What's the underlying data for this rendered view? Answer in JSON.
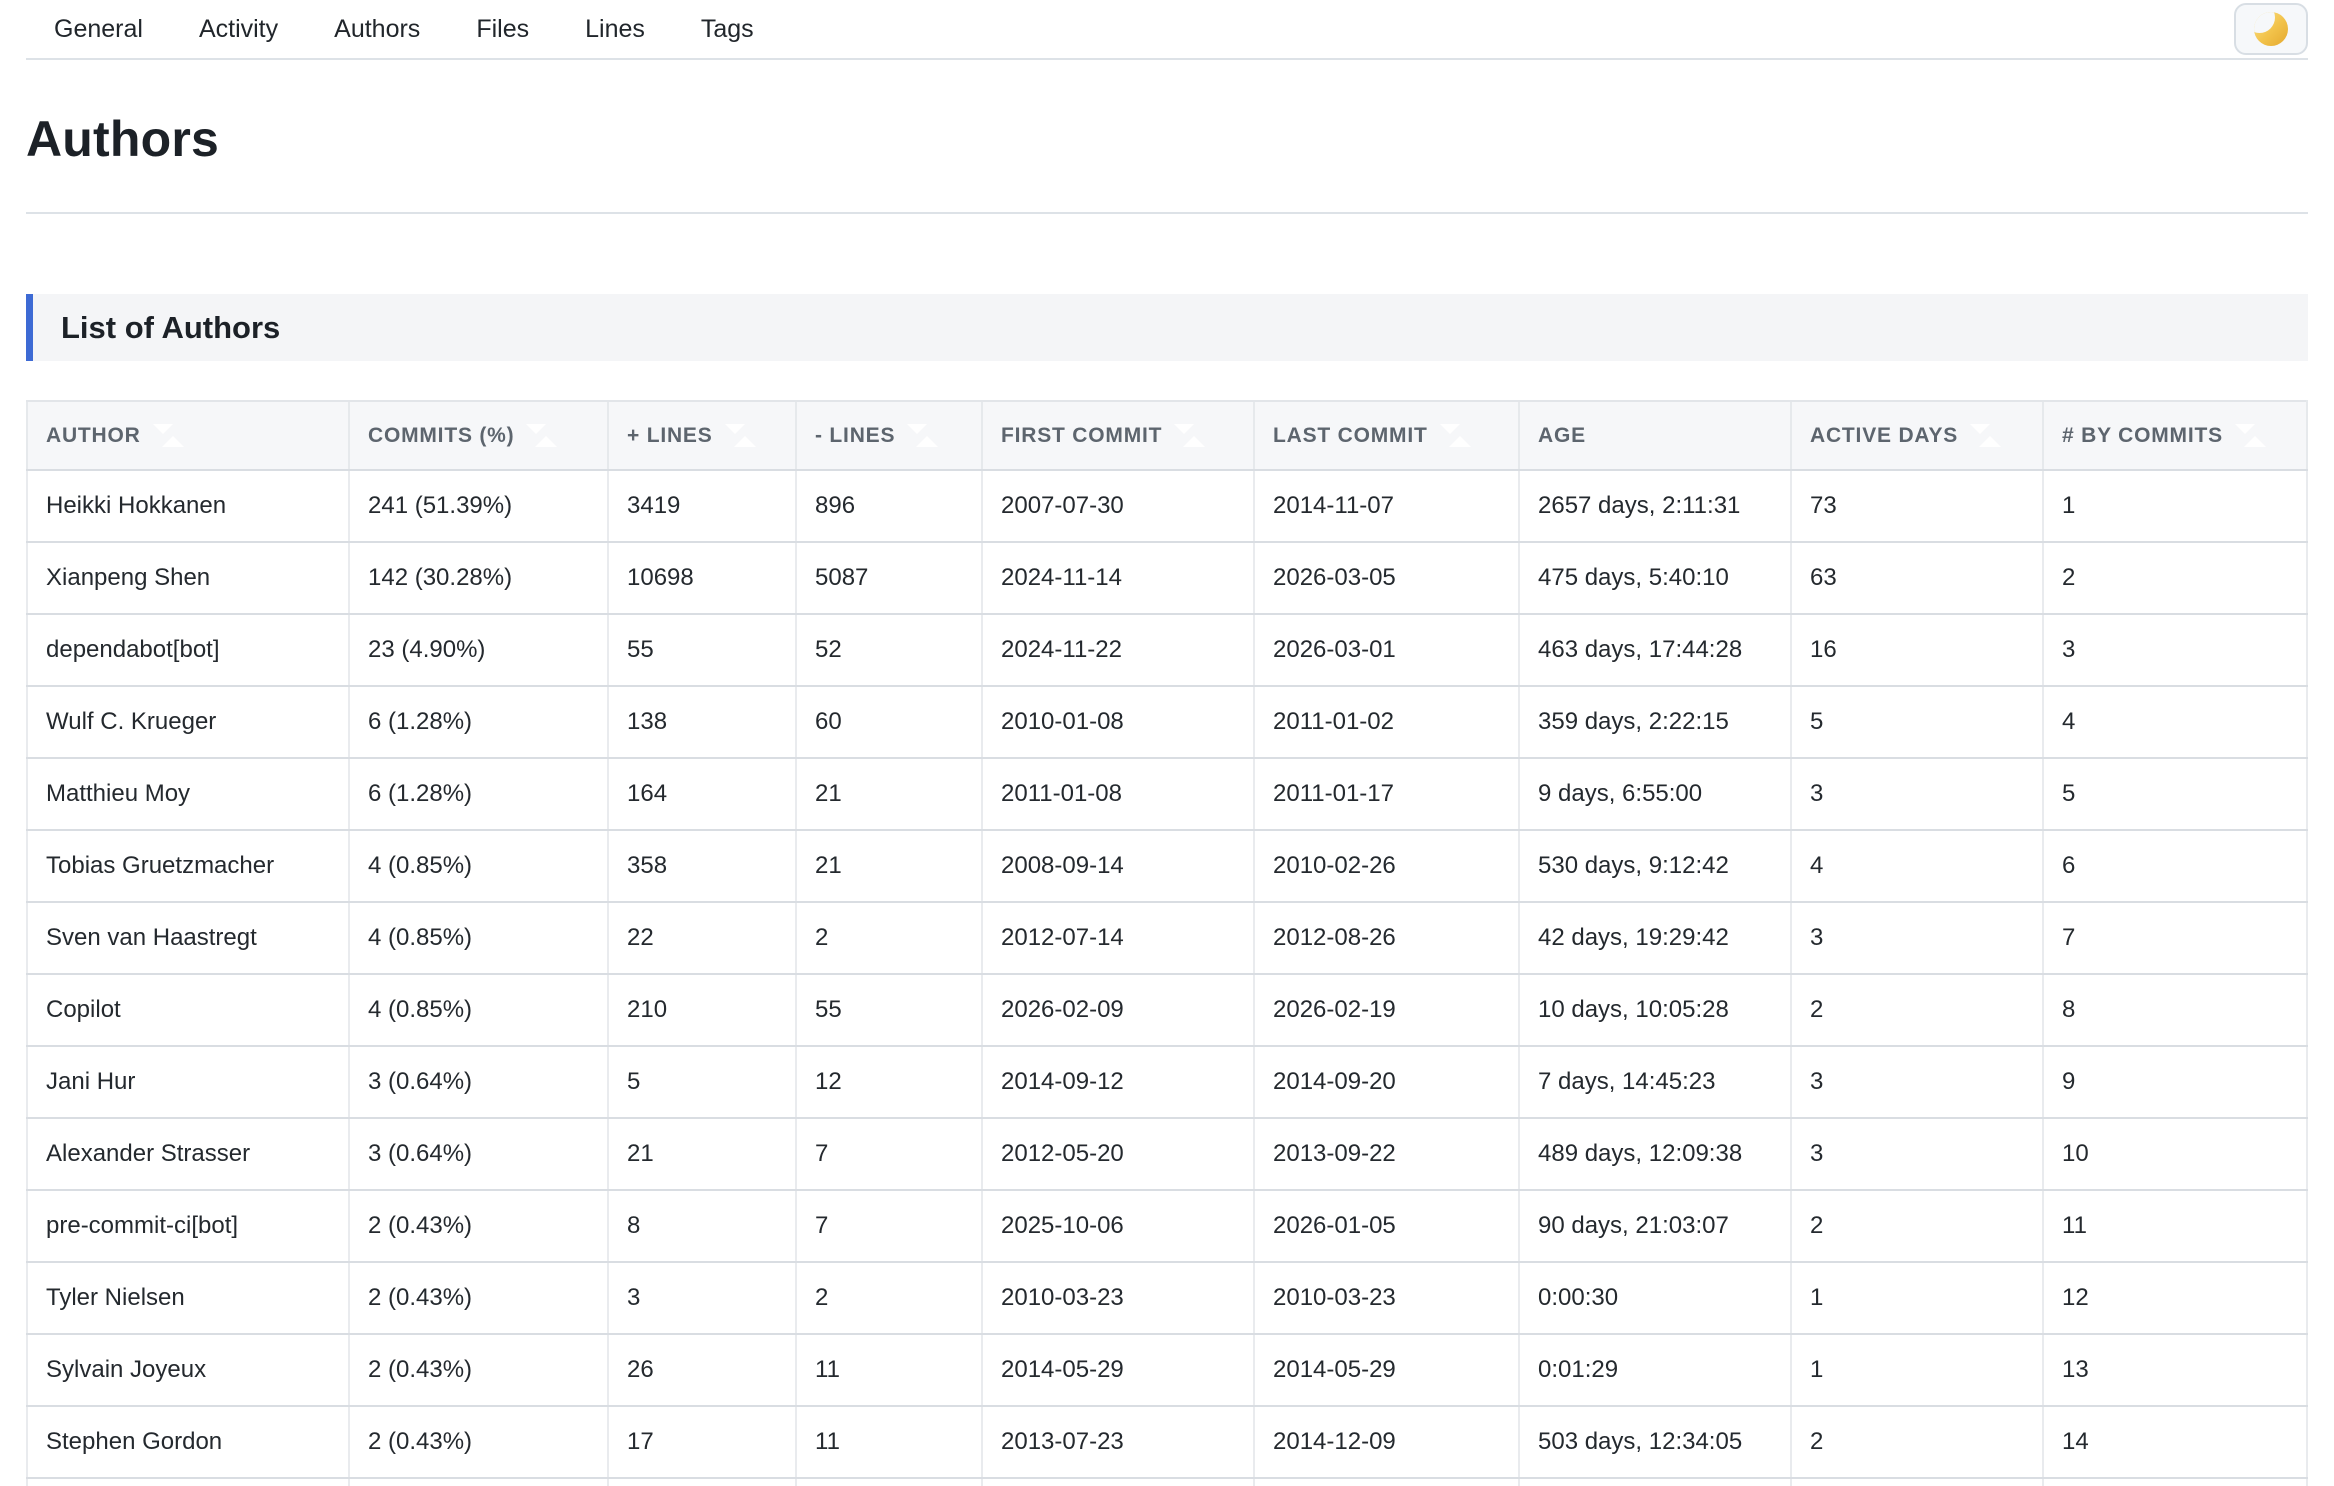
{
  "nav": {
    "items": [
      {
        "key": "general",
        "label": "General"
      },
      {
        "key": "activity",
        "label": "Activity"
      },
      {
        "key": "authors",
        "label": "Authors"
      },
      {
        "key": "files",
        "label": "Files"
      },
      {
        "key": "lines",
        "label": "Lines"
      },
      {
        "key": "tags",
        "label": "Tags"
      }
    ],
    "theme_toggle_icon": "moon-icon"
  },
  "page": {
    "title": "Authors"
  },
  "section": {
    "title": "List of Authors"
  },
  "table": {
    "columns": [
      {
        "key": "author",
        "label": "AUTHOR",
        "sortable": true
      },
      {
        "key": "commits-pct",
        "label": "COMMITS (%)",
        "sortable": true
      },
      {
        "key": "plus-lines",
        "label": "+ LINES",
        "sortable": true
      },
      {
        "key": "minus-lines",
        "label": "- LINES",
        "sortable": true
      },
      {
        "key": "first-commit",
        "label": "FIRST COMMIT",
        "sortable": true
      },
      {
        "key": "last-commit",
        "label": "LAST COMMIT",
        "sortable": true
      },
      {
        "key": "age",
        "label": "AGE",
        "sortable": false
      },
      {
        "key": "active-days",
        "label": "ACTIVE DAYS",
        "sortable": true
      },
      {
        "key": "by-commits",
        "label": "# BY COMMITS",
        "sortable": true
      }
    ],
    "rows": [
      [
        "Heikki Hokkanen",
        "241 (51.39%)",
        "3419",
        "896",
        "2007-07-30",
        "2014-11-07",
        "2657 days, 2:11:31",
        "73",
        "1"
      ],
      [
        "Xianpeng Shen",
        "142 (30.28%)",
        "10698",
        "5087",
        "2024-11-14",
        "2026-03-05",
        "475 days, 5:40:10",
        "63",
        "2"
      ],
      [
        "dependabot[bot]",
        "23 (4.90%)",
        "55",
        "52",
        "2024-11-22",
        "2026-03-01",
        "463 days, 17:44:28",
        "16",
        "3"
      ],
      [
        "Wulf C. Krueger",
        "6 (1.28%)",
        "138",
        "60",
        "2010-01-08",
        "2011-01-02",
        "359 days, 2:22:15",
        "5",
        "4"
      ],
      [
        "Matthieu Moy",
        "6 (1.28%)",
        "164",
        "21",
        "2011-01-08",
        "2011-01-17",
        "9 days, 6:55:00",
        "3",
        "5"
      ],
      [
        "Tobias Gruetzmacher",
        "4 (0.85%)",
        "358",
        "21",
        "2008-09-14",
        "2010-02-26",
        "530 days, 9:12:42",
        "4",
        "6"
      ],
      [
        "Sven van Haastregt",
        "4 (0.85%)",
        "22",
        "2",
        "2012-07-14",
        "2012-08-26",
        "42 days, 19:29:42",
        "3",
        "7"
      ],
      [
        "Copilot",
        "4 (0.85%)",
        "210",
        "55",
        "2026-02-09",
        "2026-02-19",
        "10 days, 10:05:28",
        "2",
        "8"
      ],
      [
        "Jani Hur",
        "3 (0.64%)",
        "5",
        "12",
        "2014-09-12",
        "2014-09-20",
        "7 days, 14:45:23",
        "3",
        "9"
      ],
      [
        "Alexander Strasser",
        "3 (0.64%)",
        "21",
        "7",
        "2012-05-20",
        "2013-09-22",
        "489 days, 12:09:38",
        "3",
        "10"
      ],
      [
        "pre-commit-ci[bot]",
        "2 (0.43%)",
        "8",
        "7",
        "2025-10-06",
        "2026-01-05",
        "90 days, 21:03:07",
        "2",
        "11"
      ],
      [
        "Tyler Nielsen",
        "2 (0.43%)",
        "3",
        "2",
        "2010-03-23",
        "2010-03-23",
        "0:00:30",
        "1",
        "12"
      ],
      [
        "Sylvain Joyeux",
        "2 (0.43%)",
        "26",
        "11",
        "2014-05-29",
        "2014-05-29",
        "0:01:29",
        "1",
        "13"
      ],
      [
        "Stephen Gordon",
        "2 (0.43%)",
        "17",
        "11",
        "2013-07-23",
        "2014-12-09",
        "503 days, 12:34:05",
        "2",
        "14"
      ]
    ]
  },
  "colors": {
    "accent_blue": "#3d6ad4",
    "table_header_bg": "#f6f7f9",
    "section_header_bg": "#f4f5f7",
    "row_border": "#d9dde2",
    "column_border": "#e9ebee",
    "header_text": "#5d656e",
    "cell_text": "#24292e",
    "moon_yellow": "#f2c24a"
  }
}
